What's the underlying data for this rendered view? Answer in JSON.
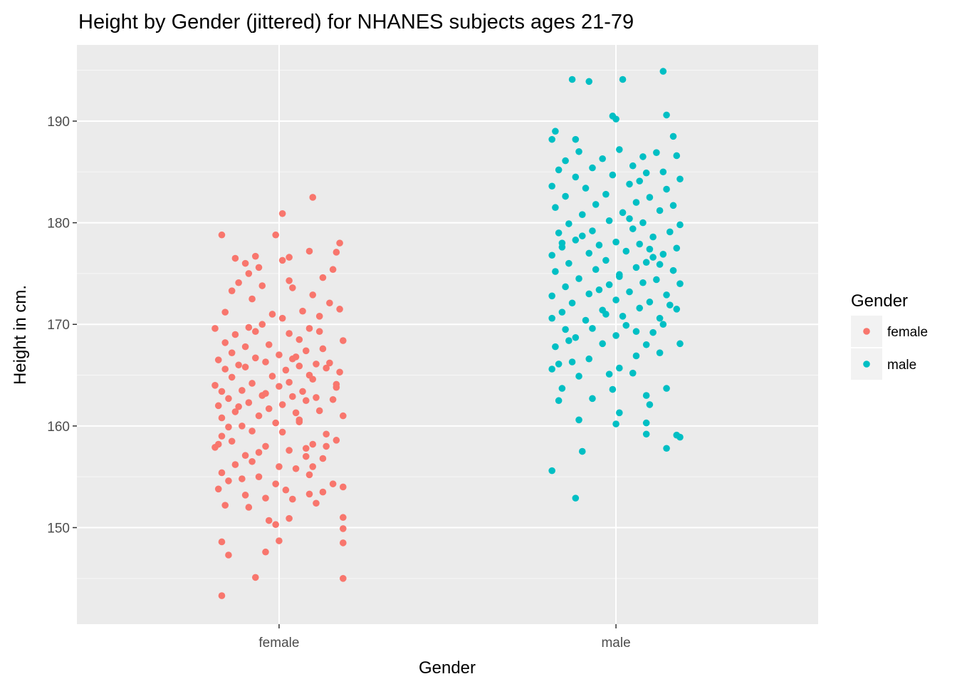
{
  "chart_data": {
    "type": "scatter",
    "title": "Height by Gender (jittered) for NHANES subjects ages 21-79",
    "xlabel": "Gender",
    "ylabel": "Height in cm.",
    "categories": [
      "female",
      "male"
    ],
    "ylim": [
      140.5,
      197.5
    ],
    "yticks": [
      150,
      160,
      170,
      180,
      190
    ],
    "grid": true,
    "legend": {
      "title": "Gender",
      "placement": "right",
      "entries": [
        {
          "label": "female",
          "color": "#F8766D"
        },
        {
          "label": "male",
          "color": "#00BFC4"
        }
      ]
    },
    "series": [
      {
        "name": "female",
        "color": "#F8766D",
        "points": [
          [
            -0.17,
            143.3
          ],
          [
            -0.07,
            145.1
          ],
          [
            0.19,
            145.0
          ],
          [
            -0.15,
            147.3
          ],
          [
            -0.04,
            147.6
          ],
          [
            -0.17,
            148.6
          ],
          [
            0.19,
            148.5
          ],
          [
            0.0,
            148.7
          ],
          [
            0.19,
            149.9
          ],
          [
            -0.01,
            150.3
          ],
          [
            -0.03,
            150.7
          ],
          [
            0.03,
            150.9
          ],
          [
            0.19,
            151.0
          ],
          [
            -0.09,
            152.0
          ],
          [
            -0.16,
            152.2
          ],
          [
            0.11,
            152.4
          ],
          [
            0.04,
            152.8
          ],
          [
            -0.04,
            152.9
          ],
          [
            0.13,
            153.5
          ],
          [
            -0.18,
            153.8
          ],
          [
            -0.1,
            153.2
          ],
          [
            0.02,
            153.7
          ],
          [
            0.09,
            153.3
          ],
          [
            -0.15,
            154.6
          ],
          [
            -0.11,
            154.8
          ],
          [
            0.16,
            154.3
          ],
          [
            -0.06,
            155.0
          ],
          [
            0.09,
            155.2
          ],
          [
            0.19,
            154.0
          ],
          [
            -0.17,
            155.4
          ],
          [
            -0.13,
            156.2
          ],
          [
            -0.08,
            156.5
          ],
          [
            0.0,
            156.0
          ],
          [
            0.05,
            155.8
          ],
          [
            0.1,
            156.0
          ],
          [
            -0.1,
            157.1
          ],
          [
            0.13,
            156.8
          ],
          [
            -0.19,
            157.9
          ],
          [
            -0.06,
            157.4
          ],
          [
            0.03,
            157.6
          ],
          [
            0.08,
            157.8
          ],
          [
            -0.18,
            158.2
          ],
          [
            -0.14,
            158.5
          ],
          [
            -0.04,
            158.0
          ],
          [
            0.1,
            158.2
          ],
          [
            0.17,
            158.6
          ],
          [
            -0.17,
            159.0
          ],
          [
            -0.08,
            159.5
          ],
          [
            0.01,
            159.4
          ],
          [
            0.14,
            159.2
          ],
          [
            -0.15,
            159.9
          ],
          [
            -0.11,
            160.0
          ],
          [
            -0.01,
            160.3
          ],
          [
            0.06,
            160.6
          ],
          [
            -0.17,
            160.8
          ],
          [
            -0.06,
            161.0
          ],
          [
            0.05,
            161.3
          ],
          [
            0.19,
            161.0
          ],
          [
            -0.13,
            161.4
          ],
          [
            -0.03,
            161.7
          ],
          [
            0.12,
            161.5
          ],
          [
            -0.18,
            162.0
          ],
          [
            -0.09,
            162.3
          ],
          [
            0.01,
            162.1
          ],
          [
            0.08,
            162.5
          ],
          [
            -0.15,
            162.7
          ],
          [
            -0.05,
            163.0
          ],
          [
            0.04,
            162.9
          ],
          [
            0.16,
            162.6
          ],
          [
            -0.17,
            163.4
          ],
          [
            -0.11,
            163.5
          ],
          [
            0.0,
            163.9
          ],
          [
            0.07,
            163.4
          ],
          [
            0.17,
            163.8
          ],
          [
            -0.19,
            164.0
          ],
          [
            -0.08,
            164.2
          ],
          [
            0.03,
            164.3
          ],
          [
            0.1,
            164.6
          ],
          [
            -0.14,
            164.8
          ],
          [
            -0.02,
            164.9
          ],
          [
            0.09,
            165.0
          ],
          [
            0.18,
            165.3
          ],
          [
            -0.16,
            165.6
          ],
          [
            -0.1,
            165.8
          ],
          [
            0.02,
            165.5
          ],
          [
            0.06,
            165.9
          ],
          [
            0.14,
            165.7
          ],
          [
            -0.12,
            166.0
          ],
          [
            -0.04,
            166.3
          ],
          [
            0.11,
            166.1
          ],
          [
            -0.18,
            166.5
          ],
          [
            -0.07,
            166.7
          ],
          [
            0.04,
            166.6
          ],
          [
            0.15,
            166.2
          ],
          [
            -0.14,
            167.2
          ],
          [
            0.0,
            167.0
          ],
          [
            0.08,
            167.4
          ],
          [
            -0.1,
            167.8
          ],
          [
            0.13,
            167.6
          ],
          [
            -0.16,
            168.2
          ],
          [
            -0.03,
            168.0
          ],
          [
            0.06,
            168.5
          ],
          [
            0.19,
            168.4
          ],
          [
            -0.13,
            169.0
          ],
          [
            0.03,
            169.1
          ],
          [
            0.12,
            169.3
          ],
          [
            -0.19,
            169.6
          ],
          [
            -0.09,
            169.7
          ],
          [
            0.09,
            169.6
          ],
          [
            -0.05,
            170.0
          ],
          [
            0.01,
            170.6
          ],
          [
            0.12,
            170.8
          ],
          [
            -0.16,
            171.2
          ],
          [
            0.07,
            171.3
          ],
          [
            0.18,
            171.5
          ],
          [
            -0.02,
            171.0
          ],
          [
            0.15,
            172.1
          ],
          [
            -0.08,
            172.5
          ],
          [
            0.1,
            172.9
          ],
          [
            -0.14,
            173.3
          ],
          [
            0.04,
            173.6
          ],
          [
            -0.05,
            173.8
          ],
          [
            -0.12,
            174.1
          ],
          [
            0.03,
            174.3
          ],
          [
            0.13,
            174.6
          ],
          [
            -0.09,
            175.0
          ],
          [
            0.16,
            175.4
          ],
          [
            -0.06,
            175.6
          ],
          [
            -0.1,
            176.0
          ],
          [
            0.01,
            176.3
          ],
          [
            -0.13,
            176.5
          ],
          [
            0.03,
            176.6
          ],
          [
            -0.07,
            176.7
          ],
          [
            0.17,
            177.1
          ],
          [
            0.09,
            177.2
          ],
          [
            0.18,
            178.0
          ],
          [
            -0.17,
            178.8
          ],
          [
            -0.01,
            178.8
          ],
          [
            0.01,
            180.9
          ],
          [
            0.1,
            182.5
          ],
          [
            -0.04,
            163.2
          ],
          [
            0.06,
            160.4
          ],
          [
            0.14,
            158.0
          ],
          [
            -0.01,
            154.3
          ],
          [
            0.08,
            157.0
          ],
          [
            -0.12,
            161.9
          ],
          [
            0.17,
            164.1
          ],
          [
            -0.07,
            169.3
          ],
          [
            0.05,
            166.8
          ],
          [
            0.11,
            162.8
          ]
        ]
      },
      {
        "name": "male",
        "color": "#00BFC4",
        "points": [
          [
            -0.12,
            152.9
          ],
          [
            -0.19,
            155.6
          ],
          [
            -0.1,
            157.5
          ],
          [
            0.0,
            160.2
          ],
          [
            0.15,
            157.8
          ],
          [
            -0.11,
            160.6
          ],
          [
            0.09,
            159.2
          ],
          [
            0.19,
            158.9
          ],
          [
            0.18,
            159.1
          ],
          [
            0.01,
            161.3
          ],
          [
            0.09,
            160.3
          ],
          [
            -0.07,
            162.7
          ],
          [
            -0.17,
            162.5
          ],
          [
            0.1,
            162.1
          ],
          [
            -0.16,
            163.7
          ],
          [
            -0.01,
            163.6
          ],
          [
            0.09,
            163.0
          ],
          [
            0.15,
            163.7
          ],
          [
            -0.11,
            164.9
          ],
          [
            -0.19,
            165.6
          ],
          [
            0.01,
            165.7
          ],
          [
            0.05,
            165.2
          ],
          [
            -0.17,
            166.1
          ],
          [
            -0.13,
            166.3
          ],
          [
            0.06,
            166.9
          ],
          [
            0.13,
            167.2
          ],
          [
            -0.18,
            167.8
          ],
          [
            -0.04,
            168.1
          ],
          [
            0.09,
            168.0
          ],
          [
            0.19,
            168.1
          ],
          [
            -0.12,
            168.7
          ],
          [
            0.0,
            168.9
          ],
          [
            0.11,
            169.2
          ],
          [
            -0.15,
            169.5
          ],
          [
            -0.07,
            169.6
          ],
          [
            0.03,
            169.9
          ],
          [
            0.14,
            170.0
          ],
          [
            -0.19,
            170.6
          ],
          [
            -0.09,
            170.4
          ],
          [
            0.02,
            170.8
          ],
          [
            0.13,
            170.6
          ],
          [
            -0.16,
            171.2
          ],
          [
            -0.04,
            171.4
          ],
          [
            0.07,
            171.6
          ],
          [
            0.18,
            171.5
          ],
          [
            -0.13,
            172.1
          ],
          [
            0.0,
            172.4
          ],
          [
            0.1,
            172.2
          ],
          [
            -0.19,
            172.8
          ],
          [
            -0.08,
            173.0
          ],
          [
            0.04,
            173.2
          ],
          [
            0.15,
            172.9
          ],
          [
            -0.15,
            173.7
          ],
          [
            -0.02,
            173.9
          ],
          [
            0.08,
            174.1
          ],
          [
            0.19,
            174.0
          ],
          [
            -0.11,
            174.5
          ],
          [
            0.01,
            174.7
          ],
          [
            0.12,
            174.4
          ],
          [
            -0.18,
            175.2
          ],
          [
            -0.06,
            175.4
          ],
          [
            0.06,
            175.6
          ],
          [
            0.17,
            175.3
          ],
          [
            -0.14,
            176.0
          ],
          [
            -0.03,
            176.3
          ],
          [
            0.09,
            176.1
          ],
          [
            -0.19,
            176.8
          ],
          [
            -0.08,
            177.0
          ],
          [
            0.03,
            177.2
          ],
          [
            0.14,
            176.9
          ],
          [
            -0.16,
            177.6
          ],
          [
            -0.05,
            177.8
          ],
          [
            0.07,
            177.9
          ],
          [
            0.18,
            177.5
          ],
          [
            -0.12,
            178.3
          ],
          [
            0.0,
            178.1
          ],
          [
            0.11,
            178.6
          ],
          [
            -0.17,
            179.0
          ],
          [
            -0.07,
            179.2
          ],
          [
            0.05,
            179.4
          ],
          [
            0.16,
            179.1
          ],
          [
            -0.14,
            179.9
          ],
          [
            -0.02,
            180.2
          ],
          [
            0.08,
            180.0
          ],
          [
            0.19,
            179.8
          ],
          [
            -0.1,
            180.8
          ],
          [
            0.02,
            181.0
          ],
          [
            0.13,
            181.2
          ],
          [
            -0.18,
            181.5
          ],
          [
            -0.06,
            181.8
          ],
          [
            0.06,
            182.0
          ],
          [
            0.17,
            181.7
          ],
          [
            -0.15,
            182.6
          ],
          [
            -0.03,
            182.8
          ],
          [
            0.1,
            182.5
          ],
          [
            -0.19,
            183.6
          ],
          [
            -0.09,
            183.4
          ],
          [
            0.04,
            183.8
          ],
          [
            0.15,
            183.3
          ],
          [
            -0.12,
            184.5
          ],
          [
            -0.01,
            184.7
          ],
          [
            0.09,
            184.9
          ],
          [
            0.19,
            184.3
          ],
          [
            -0.17,
            185.2
          ],
          [
            -0.07,
            185.4
          ],
          [
            0.05,
            185.6
          ],
          [
            0.14,
            185.0
          ],
          [
            -0.15,
            186.1
          ],
          [
            -0.04,
            186.3
          ],
          [
            0.08,
            186.5
          ],
          [
            0.18,
            186.6
          ],
          [
            -0.11,
            187.0
          ],
          [
            0.01,
            187.2
          ],
          [
            0.12,
            186.9
          ],
          [
            -0.19,
            188.2
          ],
          [
            -0.12,
            188.2
          ],
          [
            0.17,
            188.5
          ],
          [
            -0.18,
            189.0
          ],
          [
            0.0,
            190.2
          ],
          [
            -0.01,
            190.5
          ],
          [
            0.15,
            190.6
          ],
          [
            -0.13,
            194.1
          ],
          [
            -0.08,
            193.9
          ],
          [
            0.02,
            194.1
          ],
          [
            0.14,
            194.9
          ],
          [
            -0.02,
            165.1
          ],
          [
            0.06,
            169.3
          ],
          [
            -0.1,
            178.7
          ],
          [
            0.11,
            176.6
          ],
          [
            -0.05,
            173.4
          ],
          [
            0.16,
            171.9
          ],
          [
            -0.14,
            168.4
          ],
          [
            0.04,
            180.4
          ],
          [
            -0.08,
            166.6
          ],
          [
            0.13,
            175.9
          ],
          [
            -0.03,
            171.0
          ],
          [
            0.07,
            184.1
          ],
          [
            -0.16,
            178.0
          ],
          [
            0.1,
            177.4
          ],
          [
            0.01,
            174.9
          ]
        ]
      }
    ]
  }
}
